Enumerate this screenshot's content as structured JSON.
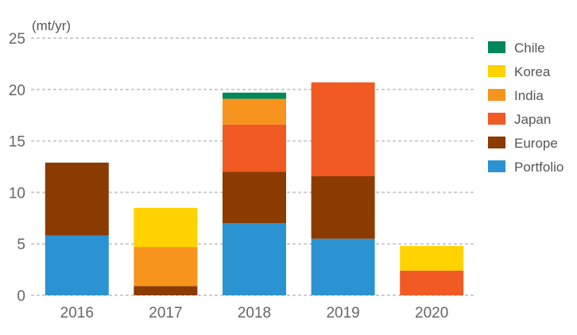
{
  "chart_data": {
    "type": "bar",
    "stacked": true,
    "unit_label": "(mt/yr)",
    "title": "",
    "xlabel": "",
    "ylabel": "",
    "ylim": [
      0,
      25
    ],
    "yticks": [
      "0",
      "5",
      "10",
      "15",
      "20",
      "25"
    ],
    "grid": true,
    "legend_position": "right",
    "categories": [
      "2016",
      "2017",
      "2018",
      "2019",
      "2020"
    ],
    "series": [
      {
        "name": "Portfolio",
        "color": "#2b93d1",
        "values": [
          5.8,
          0,
          7.0,
          5.5,
          0
        ]
      },
      {
        "name": "Europe",
        "color": "#8b3a00",
        "values": [
          7.1,
          0.9,
          5.0,
          6.1,
          0
        ]
      },
      {
        "name": "Japan",
        "color": "#f15a22",
        "values": [
          0,
          0,
          4.6,
          9.1,
          2.4
        ]
      },
      {
        "name": "India",
        "color": "#f7941d",
        "values": [
          0,
          3.8,
          2.5,
          0,
          0
        ]
      },
      {
        "name": "Korea",
        "color": "#ffd200",
        "values": [
          0,
          3.8,
          0,
          0,
          2.4
        ]
      },
      {
        "name": "Chile",
        "color": "#00875a",
        "values": [
          0,
          0,
          0.6,
          0,
          0
        ]
      }
    ],
    "legend_order": [
      "Chile",
      "Korea",
      "India",
      "Japan",
      "Europe",
      "Portfolio"
    ]
  }
}
